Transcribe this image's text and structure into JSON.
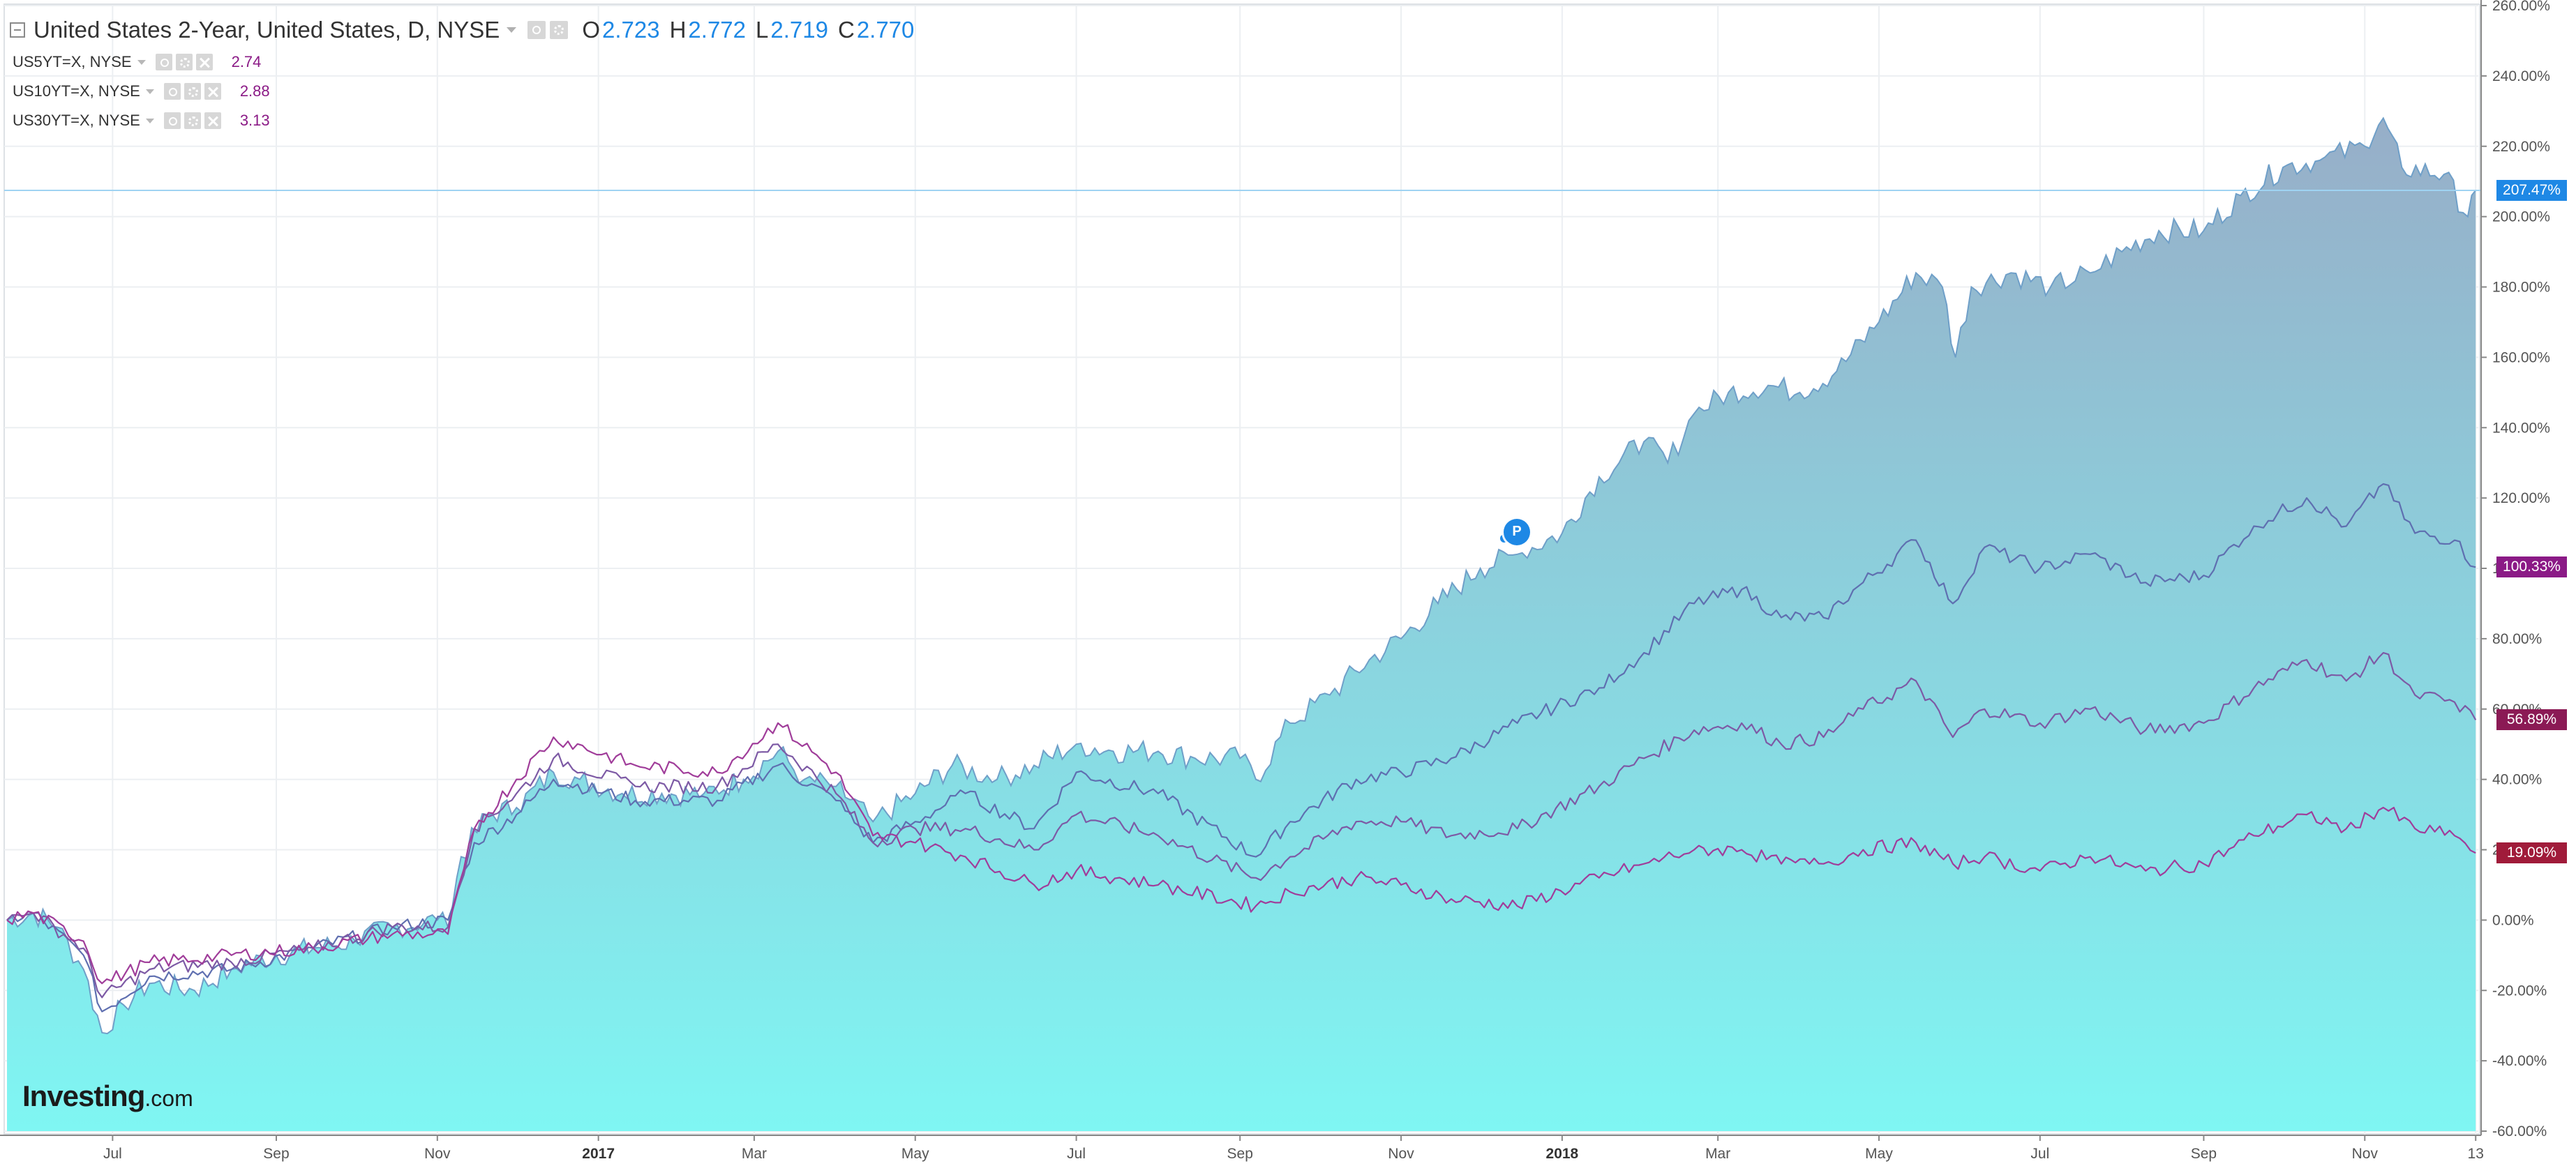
{
  "legend": {
    "main": {
      "title": "United States 2-Year, United States, D, NYSE",
      "open_key": "O",
      "open": "2.723",
      "high_key": "H",
      "high": "2.772",
      "low_key": "L",
      "low": "2.719",
      "close_key": "C",
      "close": "2.770"
    },
    "series": [
      {
        "label": "US5YT=X, NYSE",
        "value": "2.74"
      },
      {
        "label": "US10YT=X, NYSE",
        "value": "2.88"
      },
      {
        "label": "US30YT=X, NYSE",
        "value": "3.13"
      }
    ],
    "icons": [
      "eye-icon",
      "gear-icon",
      "close-icon",
      "collapse-icon",
      "dropdown-caret-icon"
    ]
  },
  "badges": {
    "us2y": "207.47%",
    "us5y": "100.33%",
    "us10y": "56.89%",
    "us30y": "19.09%"
  },
  "marker": {
    "label": "P"
  },
  "logo": {
    "main": "Investing",
    "domain": ".com"
  },
  "colors": {
    "area_top": "#97aec8",
    "area_bottom": "#7ff6f3",
    "area_line": "#6f9fc8",
    "us5y_line": "#5f6fb0",
    "us10y_line": "#7d5aa5",
    "us30y_line": "#a03d9a",
    "current_price_line": "#9fd3f2",
    "badge_us2y": "#1e88e5",
    "badge_us5y": "#8b1a86",
    "badge_us10y": "#8b1a55",
    "badge_us30y": "#a01b3a",
    "grid": "#eceff2"
  },
  "chart_data": {
    "type": "area",
    "title": "United States 2-Year, United States, D, NYSE",
    "comparison_mode": "percent change",
    "y_unit": "%",
    "ylim": [
      -60,
      260
    ],
    "y_ticks": [
      -60,
      -40,
      -20,
      0,
      20,
      40,
      60,
      80,
      100,
      120,
      140,
      160,
      180,
      200,
      220,
      240,
      260
    ],
    "y_tick_labels": [
      "-60.00%",
      "-40.00%",
      "-20.00%",
      "0.00%",
      "20.00%",
      "40.00%",
      "60.00%",
      "80.00%",
      "100.00%",
      "120.00%",
      "140.00%",
      "160.00%",
      "180.00%",
      "200.00%",
      "220.00%",
      "240.00%",
      "260.00%"
    ],
    "xlim": [
      "2016-05-22",
      "2018-12-14"
    ],
    "x_ticks": [
      {
        "date": "2016-07-01",
        "label": "Jul",
        "year": false
      },
      {
        "date": "2016-09-01",
        "label": "Sep",
        "year": false
      },
      {
        "date": "2016-11-01",
        "label": "Nov",
        "year": false
      },
      {
        "date": "2017-01-01",
        "label": "2017",
        "year": true
      },
      {
        "date": "2017-03-01",
        "label": "Mar",
        "year": false
      },
      {
        "date": "2017-05-01",
        "label": "May",
        "year": false
      },
      {
        "date": "2017-07-01",
        "label": "Jul",
        "year": false
      },
      {
        "date": "2017-09-01",
        "label": "Sep",
        "year": false
      },
      {
        "date": "2017-11-01",
        "label": "Nov",
        "year": false
      },
      {
        "date": "2018-01-01",
        "label": "2018",
        "year": true
      },
      {
        "date": "2018-03-01",
        "label": "Mar",
        "year": false
      },
      {
        "date": "2018-05-01",
        "label": "May",
        "year": false
      },
      {
        "date": "2018-07-01",
        "label": "Jul",
        "year": false
      },
      {
        "date": "2018-09-01",
        "label": "Sep",
        "year": false
      },
      {
        "date": "2018-11-01",
        "label": "Nov",
        "year": false
      },
      {
        "date": "2018-12-13",
        "label": "13",
        "year": false
      }
    ],
    "grid": true,
    "legend": "top-left",
    "current_value_line": 207.47,
    "series": [
      {
        "name": "United States 2-Year, United States, D, NYSE",
        "style": "area",
        "points": [
          [
            "2016-05-22",
            0
          ],
          [
            "2016-06-01",
            2
          ],
          [
            "2016-06-10",
            -2
          ],
          [
            "2016-06-20",
            -14
          ],
          [
            "2016-06-27",
            -32
          ],
          [
            "2016-07-05",
            -24
          ],
          [
            "2016-07-15",
            -18
          ],
          [
            "2016-08-01",
            -20
          ],
          [
            "2016-08-15",
            -14
          ],
          [
            "2016-09-01",
            -10
          ],
          [
            "2016-09-15",
            -8
          ],
          [
            "2016-10-01",
            -6
          ],
          [
            "2016-10-15",
            -2
          ],
          [
            "2016-11-01",
            0
          ],
          [
            "2016-11-05",
            -2
          ],
          [
            "2016-11-10",
            18
          ],
          [
            "2016-11-20",
            30
          ],
          [
            "2016-12-01",
            32
          ],
          [
            "2016-12-15",
            42
          ],
          [
            "2016-12-25",
            40
          ],
          [
            "2017-01-10",
            36
          ],
          [
            "2017-01-25",
            36
          ],
          [
            "2017-02-10",
            36
          ],
          [
            "2017-02-25",
            40
          ],
          [
            "2017-03-10",
            48
          ],
          [
            "2017-03-20",
            40
          ],
          [
            "2017-04-01",
            38
          ],
          [
            "2017-04-15",
            28
          ],
          [
            "2017-05-01",
            36
          ],
          [
            "2017-05-15",
            44
          ],
          [
            "2017-06-01",
            40
          ],
          [
            "2017-06-15",
            44
          ],
          [
            "2017-07-01",
            50
          ],
          [
            "2017-07-15",
            48
          ],
          [
            "2017-08-01",
            48
          ],
          [
            "2017-08-15",
            46
          ],
          [
            "2017-09-01",
            46
          ],
          [
            "2017-09-07",
            40
          ],
          [
            "2017-09-20",
            56
          ],
          [
            "2017-10-05",
            64
          ],
          [
            "2017-10-20",
            74
          ],
          [
            "2017-11-01",
            80
          ],
          [
            "2017-11-15",
            90
          ],
          [
            "2017-12-01",
            100
          ],
          [
            "2017-12-15",
            104
          ],
          [
            "2018-01-01",
            110
          ],
          [
            "2018-01-15",
            126
          ],
          [
            "2018-02-01",
            136
          ],
          [
            "2018-02-10",
            130
          ],
          [
            "2018-02-20",
            144
          ],
          [
            "2018-03-05",
            150
          ],
          [
            "2018-03-20",
            152
          ],
          [
            "2018-04-01",
            150
          ],
          [
            "2018-04-15",
            156
          ],
          [
            "2018-05-01",
            170
          ],
          [
            "2018-05-15",
            184
          ],
          [
            "2018-05-25",
            180
          ],
          [
            "2018-05-30",
            160
          ],
          [
            "2018-06-05",
            180
          ],
          [
            "2018-06-20",
            184
          ],
          [
            "2018-07-05",
            180
          ],
          [
            "2018-07-20",
            184
          ],
          [
            "2018-08-01",
            190
          ],
          [
            "2018-08-15",
            196
          ],
          [
            "2018-09-01",
            196
          ],
          [
            "2018-09-15",
            206
          ],
          [
            "2018-10-01",
            214
          ],
          [
            "2018-10-15",
            216
          ],
          [
            "2018-11-01",
            220
          ],
          [
            "2018-11-08",
            228
          ],
          [
            "2018-11-15",
            214
          ],
          [
            "2018-12-01",
            212
          ],
          [
            "2018-12-10",
            200
          ],
          [
            "2018-12-13",
            207.47
          ]
        ]
      },
      {
        "name": "US5YT=X, NYSE",
        "style": "line",
        "points": [
          [
            "2016-05-22",
            0
          ],
          [
            "2016-06-01",
            2
          ],
          [
            "2016-06-20",
            -10
          ],
          [
            "2016-06-27",
            -26
          ],
          [
            "2016-07-15",
            -16
          ],
          [
            "2016-08-15",
            -14
          ],
          [
            "2016-09-15",
            -8
          ],
          [
            "2016-10-15",
            -2
          ],
          [
            "2016-11-05",
            0
          ],
          [
            "2016-11-15",
            22
          ],
          [
            "2016-12-01",
            30
          ],
          [
            "2016-12-15",
            40
          ],
          [
            "2017-01-15",
            34
          ],
          [
            "2017-02-15",
            34
          ],
          [
            "2017-03-10",
            44
          ],
          [
            "2017-04-01",
            34
          ],
          [
            "2017-04-15",
            22
          ],
          [
            "2017-05-01",
            28
          ],
          [
            "2017-05-20",
            36
          ],
          [
            "2017-06-15",
            26
          ],
          [
            "2017-07-01",
            42
          ],
          [
            "2017-08-01",
            36
          ],
          [
            "2017-09-07",
            18
          ],
          [
            "2017-09-20",
            28
          ],
          [
            "2017-10-15",
            40
          ],
          [
            "2017-11-01",
            42
          ],
          [
            "2017-11-20",
            46
          ],
          [
            "2017-12-15",
            56
          ],
          [
            "2018-01-15",
            66
          ],
          [
            "2018-02-01",
            76
          ],
          [
            "2018-02-20",
            90
          ],
          [
            "2018-03-10",
            94
          ],
          [
            "2018-03-25",
            86
          ],
          [
            "2018-04-10",
            86
          ],
          [
            "2018-04-25",
            96
          ],
          [
            "2018-05-15",
            108
          ],
          [
            "2018-05-29",
            90
          ],
          [
            "2018-06-10",
            106
          ],
          [
            "2018-07-01",
            100
          ],
          [
            "2018-07-20",
            104
          ],
          [
            "2018-08-10",
            96
          ],
          [
            "2018-09-01",
            98
          ],
          [
            "2018-09-20",
            112
          ],
          [
            "2018-10-10",
            120
          ],
          [
            "2018-10-25",
            112
          ],
          [
            "2018-11-08",
            124
          ],
          [
            "2018-11-20",
            110
          ],
          [
            "2018-12-05",
            108
          ],
          [
            "2018-12-13",
            100.33
          ]
        ]
      },
      {
        "name": "US10YT=X, NYSE",
        "style": "line",
        "points": [
          [
            "2016-05-22",
            0
          ],
          [
            "2016-06-01",
            2
          ],
          [
            "2016-06-20",
            -8
          ],
          [
            "2016-06-27",
            -22
          ],
          [
            "2016-07-15",
            -14
          ],
          [
            "2016-08-15",
            -12
          ],
          [
            "2016-09-15",
            -8
          ],
          [
            "2016-10-15",
            -2
          ],
          [
            "2016-11-05",
            -2
          ],
          [
            "2016-11-15",
            26
          ],
          [
            "2016-12-01",
            36
          ],
          [
            "2016-12-15",
            46
          ],
          [
            "2017-01-15",
            38
          ],
          [
            "2017-02-15",
            38
          ],
          [
            "2017-03-10",
            50
          ],
          [
            "2017-04-01",
            36
          ],
          [
            "2017-04-15",
            22
          ],
          [
            "2017-05-01",
            26
          ],
          [
            "2017-05-20",
            26
          ],
          [
            "2017-06-15",
            20
          ],
          [
            "2017-07-01",
            30
          ],
          [
            "2017-08-01",
            24
          ],
          [
            "2017-09-07",
            12
          ],
          [
            "2017-09-20",
            18
          ],
          [
            "2017-10-15",
            28
          ],
          [
            "2017-11-01",
            28
          ],
          [
            "2017-11-20",
            24
          ],
          [
            "2017-12-15",
            26
          ],
          [
            "2018-01-15",
            38
          ],
          [
            "2018-02-01",
            46
          ],
          [
            "2018-02-20",
            54
          ],
          [
            "2018-03-10",
            56
          ],
          [
            "2018-03-25",
            50
          ],
          [
            "2018-04-10",
            52
          ],
          [
            "2018-04-25",
            60
          ],
          [
            "2018-05-15",
            68
          ],
          [
            "2018-05-29",
            52
          ],
          [
            "2018-06-10",
            60
          ],
          [
            "2018-07-01",
            56
          ],
          [
            "2018-07-20",
            60
          ],
          [
            "2018-08-10",
            54
          ],
          [
            "2018-09-01",
            56
          ],
          [
            "2018-09-20",
            66
          ],
          [
            "2018-10-10",
            74
          ],
          [
            "2018-10-25",
            68
          ],
          [
            "2018-11-08",
            76
          ],
          [
            "2018-11-20",
            64
          ],
          [
            "2018-12-05",
            62
          ],
          [
            "2018-12-13",
            56.89
          ]
        ]
      },
      {
        "name": "US30YT=X, NYSE",
        "style": "line",
        "points": [
          [
            "2016-05-22",
            0
          ],
          [
            "2016-06-01",
            2
          ],
          [
            "2016-06-20",
            -6
          ],
          [
            "2016-06-27",
            -18
          ],
          [
            "2016-07-15",
            -12
          ],
          [
            "2016-08-15",
            -10
          ],
          [
            "2016-09-15",
            -8
          ],
          [
            "2016-10-15",
            -4
          ],
          [
            "2016-11-05",
            -4
          ],
          [
            "2016-11-15",
            26
          ],
          [
            "2016-12-01",
            40
          ],
          [
            "2016-12-15",
            52
          ],
          [
            "2017-01-15",
            44
          ],
          [
            "2017-02-15",
            42
          ],
          [
            "2017-03-10",
            56
          ],
          [
            "2017-04-01",
            42
          ],
          [
            "2017-04-15",
            24
          ],
          [
            "2017-05-01",
            22
          ],
          [
            "2017-05-20",
            18
          ],
          [
            "2017-06-15",
            10
          ],
          [
            "2017-07-01",
            14
          ],
          [
            "2017-08-01",
            10
          ],
          [
            "2017-09-07",
            4
          ],
          [
            "2017-09-20",
            8
          ],
          [
            "2017-10-15",
            12
          ],
          [
            "2017-11-01",
            10
          ],
          [
            "2017-11-20",
            6
          ],
          [
            "2017-12-15",
            4
          ],
          [
            "2018-01-15",
            12
          ],
          [
            "2018-02-01",
            16
          ],
          [
            "2018-02-20",
            20
          ],
          [
            "2018-03-10",
            20
          ],
          [
            "2018-03-25",
            16
          ],
          [
            "2018-04-10",
            16
          ],
          [
            "2018-04-25",
            20
          ],
          [
            "2018-05-15",
            22
          ],
          [
            "2018-05-29",
            16
          ],
          [
            "2018-06-10",
            18
          ],
          [
            "2018-07-01",
            14
          ],
          [
            "2018-07-20",
            18
          ],
          [
            "2018-08-10",
            14
          ],
          [
            "2018-09-01",
            16
          ],
          [
            "2018-09-20",
            24
          ],
          [
            "2018-10-10",
            30
          ],
          [
            "2018-10-25",
            26
          ],
          [
            "2018-11-08",
            32
          ],
          [
            "2018-11-20",
            26
          ],
          [
            "2018-12-05",
            24
          ],
          [
            "2018-12-13",
            19.09
          ]
        ]
      }
    ]
  }
}
